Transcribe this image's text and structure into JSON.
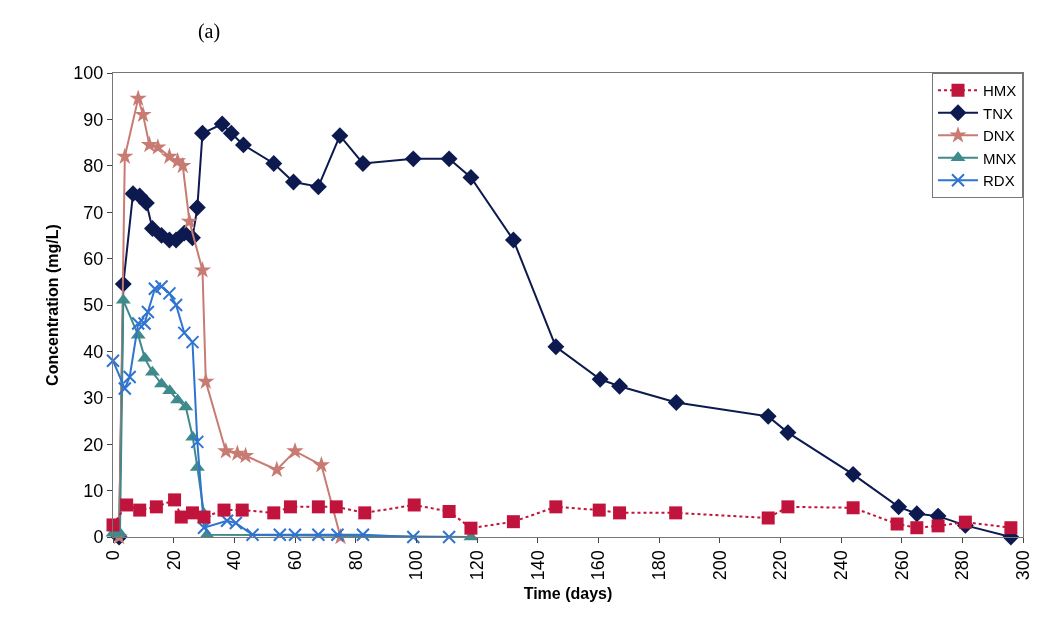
{
  "chart_data": {
    "type": "line",
    "title": "(a)",
    "xlabel": "Time (days)",
    "ylabel": "Concentration (mg/L)",
    "xlim": [
      0,
      300
    ],
    "xticks": [
      0,
      20,
      40,
      60,
      80,
      100,
      120,
      140,
      160,
      180,
      200,
      220,
      240,
      260,
      280,
      300
    ],
    "ylim": [
      0,
      100
    ],
    "yticks": [
      0,
      10,
      20,
      30,
      40,
      50,
      60,
      70,
      80,
      90,
      100
    ],
    "grid": false,
    "legend": "top right",
    "series": [
      {
        "name": "HMX",
        "color": "#c0143c",
        "marker": "square",
        "line_style": "dotted",
        "x": [
          0,
          4.5,
          8.8,
          14.3,
          20.3,
          22.5,
          26.2,
          30,
          36.6,
          42.6,
          53,
          58.5,
          67.7,
          73.6,
          83,
          99.3,
          110.8,
          118,
          132,
          146,
          160.3,
          167,
          185.5,
          216,
          222.5,
          244,
          258.5,
          265,
          272,
          281,
          296
        ],
        "values": [
          2.6,
          6.9,
          5.8,
          6.5,
          8,
          4.3,
          5.2,
          4.3,
          5.8,
          5.8,
          5.2,
          6.5,
          6.5,
          6.5,
          5.2,
          6.9,
          5.5,
          1.9,
          3.3,
          6.5,
          5.8,
          5.2,
          5.2,
          4.1,
          6.5,
          6.3,
          2.8,
          2,
          2.4,
          3.2,
          2
        ]
      },
      {
        "name": "TNX",
        "color": "#0d1a4f",
        "marker": "diamond",
        "line_style": "solid",
        "x": [
          2,
          3.4,
          6.6,
          8.8,
          11,
          13,
          16,
          18.6,
          20.8,
          23.5,
          26.2,
          27.8,
          29.5,
          36,
          39,
          43,
          53,
          59.5,
          67.7,
          74.8,
          82.4,
          99,
          110.8,
          118,
          132,
          146,
          160.6,
          167,
          185.7,
          216,
          222.5,
          244,
          259,
          265,
          272,
          281,
          296
        ],
        "values": [
          0,
          54.5,
          74,
          73.5,
          72,
          66.5,
          65,
          64,
          64,
          65.5,
          64.5,
          71,
          87,
          89,
          87,
          84.5,
          80.5,
          76.5,
          75.5,
          86.5,
          80.5,
          81.5,
          81.5,
          77.5,
          64,
          41,
          34,
          32.5,
          29,
          26,
          22.5,
          13.5,
          6.5,
          5,
          4.5,
          2.5,
          0
        ]
      },
      {
        "name": "DNX",
        "color": "#c87b72",
        "marker": "star",
        "line_style": "solid",
        "x": [
          2,
          3.9,
          8.3,
          9.9,
          12,
          14.8,
          18.6,
          21.3,
          23,
          25.2,
          29.5,
          30.6,
          37.2,
          41,
          43.7,
          54,
          60,
          68.7,
          75
        ],
        "values": [
          0,
          82,
          94.5,
          91,
          84.5,
          84,
          82,
          81,
          80,
          68,
          57.5,
          33.5,
          18.5,
          18,
          17.5,
          14.5,
          18.5,
          15.5,
          0
        ]
      },
      {
        "name": "MNX",
        "color": "#3f8a8a",
        "marker": "triangle",
        "line_style": "solid",
        "x": [
          0,
          2.3,
          3.4,
          8.3,
          10.5,
          13,
          16,
          18.7,
          21.3,
          24,
          26.3,
          27.8,
          30,
          31,
          118
        ],
        "values": [
          0.8,
          0.8,
          51,
          43.5,
          38.5,
          35.5,
          33,
          31.5,
          29.5,
          28,
          21.5,
          15,
          5,
          0.5,
          0
        ]
      },
      {
        "name": "RDX",
        "color": "#2f74d0",
        "marker": "cross",
        "line_style": "solid",
        "x": [
          0,
          3.9,
          5.5,
          8.3,
          10.4,
          11.5,
          13.8,
          16,
          18.6,
          20.8,
          23.5,
          26.2,
          27.8,
          30,
          37.6,
          40.5,
          46,
          55,
          60,
          67.7,
          74,
          82.4,
          99,
          110.8
        ],
        "values": [
          38,
          32,
          34.5,
          46,
          46,
          48.5,
          53.5,
          54,
          52.5,
          50,
          44,
          42,
          20.5,
          2,
          3.5,
          3,
          0.5,
          0.5,
          0.5,
          0.5,
          0.5,
          0.5,
          0,
          0
        ]
      }
    ]
  }
}
